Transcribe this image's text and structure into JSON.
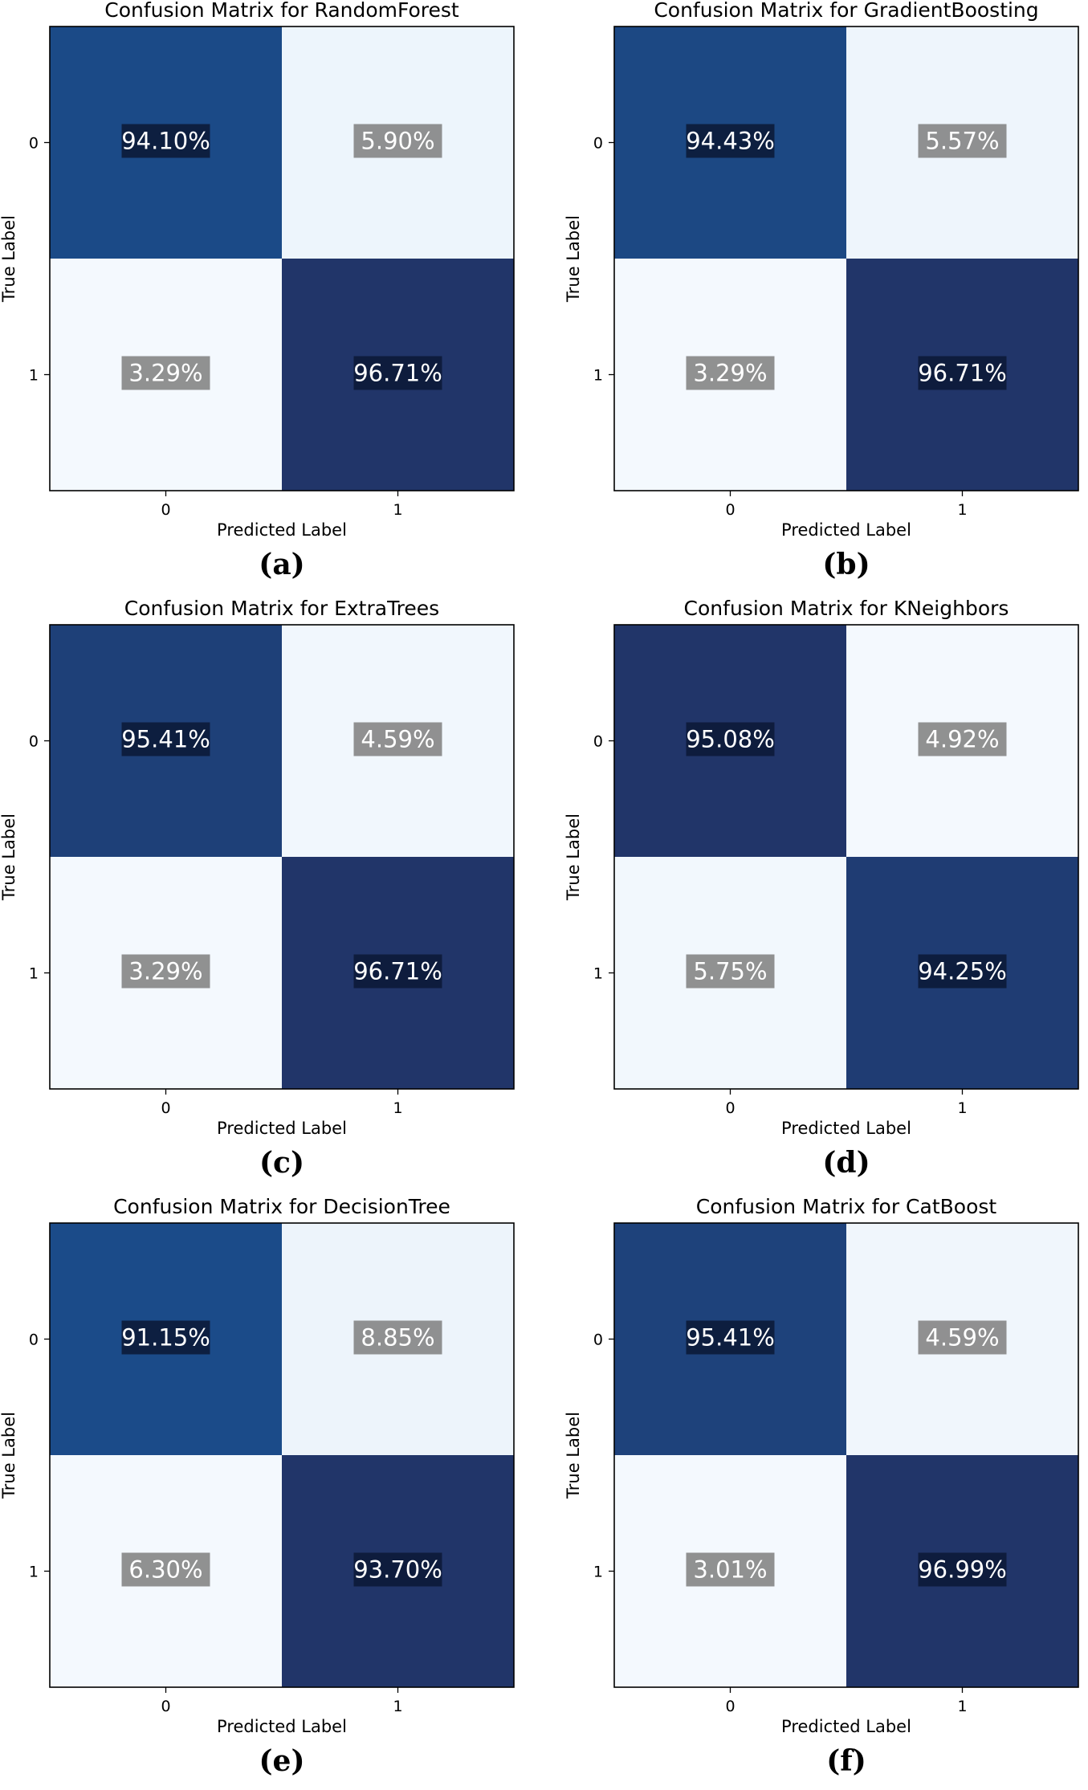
{
  "chart_data": [
    {
      "type": "heatmap",
      "panel": "(a)",
      "title": "Confusion Matrix for RandomForest",
      "xlabel": "Predicted Label",
      "ylabel": "True Label",
      "xticks": [
        "0",
        "1"
      ],
      "yticks": [
        "0",
        "1"
      ],
      "values": [
        [
          94.1,
          5.9
        ],
        [
          3.29,
          96.71
        ]
      ],
      "labels": [
        [
          "94.10%",
          "5.90%"
        ],
        [
          "3.29%",
          "96.71%"
        ]
      ],
      "colormap": "Blues"
    },
    {
      "type": "heatmap",
      "panel": "(b)",
      "title": "Confusion Matrix for GradientBoosting",
      "xlabel": "Predicted Label",
      "ylabel": "True Label",
      "xticks": [
        "0",
        "1"
      ],
      "yticks": [
        "0",
        "1"
      ],
      "values": [
        [
          94.43,
          5.57
        ],
        [
          3.29,
          96.71
        ]
      ],
      "labels": [
        [
          "94.43%",
          "5.57%"
        ],
        [
          "3.29%",
          "96.71%"
        ]
      ],
      "colormap": "Blues"
    },
    {
      "type": "heatmap",
      "panel": "(c)",
      "title": "Confusion Matrix for ExtraTrees",
      "xlabel": "Predicted Label",
      "ylabel": "True Label",
      "xticks": [
        "0",
        "1"
      ],
      "yticks": [
        "0",
        "1"
      ],
      "values": [
        [
          95.41,
          4.59
        ],
        [
          3.29,
          96.71
        ]
      ],
      "labels": [
        [
          "95.41%",
          "4.59%"
        ],
        [
          "3.29%",
          "96.71%"
        ]
      ],
      "colormap": "Blues"
    },
    {
      "type": "heatmap",
      "panel": "(d)",
      "title": "Confusion Matrix for KNeighbors",
      "xlabel": "Predicted Label",
      "ylabel": "True Label",
      "xticks": [
        "0",
        "1"
      ],
      "yticks": [
        "0",
        "1"
      ],
      "values": [
        [
          95.08,
          4.92
        ],
        [
          5.75,
          94.25
        ]
      ],
      "labels": [
        [
          "95.08%",
          "4.92%"
        ],
        [
          "5.75%",
          "94.25%"
        ]
      ],
      "colormap": "Blues"
    },
    {
      "type": "heatmap",
      "panel": "(e)",
      "title": "Confusion Matrix for DecisionTree",
      "xlabel": "Predicted Label",
      "ylabel": "True Label",
      "xticks": [
        "0",
        "1"
      ],
      "yticks": [
        "0",
        "1"
      ],
      "values": [
        [
          91.15,
          8.85
        ],
        [
          6.3,
          93.7
        ]
      ],
      "labels": [
        [
          "91.15%",
          "8.85%"
        ],
        [
          "6.30%",
          "93.70%"
        ]
      ],
      "colormap": "Blues"
    },
    {
      "type": "heatmap",
      "panel": "(f)",
      "title": "Confusion Matrix for CatBoost",
      "xlabel": "Predicted Label",
      "ylabel": "True Label",
      "xticks": [
        "0",
        "1"
      ],
      "yticks": [
        "0",
        "1"
      ],
      "values": [
        [
          95.41,
          4.59
        ],
        [
          3.01,
          96.99
        ]
      ],
      "labels": [
        [
          "95.41%",
          "4.59%"
        ],
        [
          "3.01%",
          "96.99%"
        ]
      ],
      "colormap": "Blues"
    }
  ],
  "colors": {
    "blues_light": "#f4f9fe",
    "blues_mid": "#1563aa",
    "blues_dark": "#213569",
    "box_dark": "#0b1937",
    "box_light": "#828282"
  }
}
